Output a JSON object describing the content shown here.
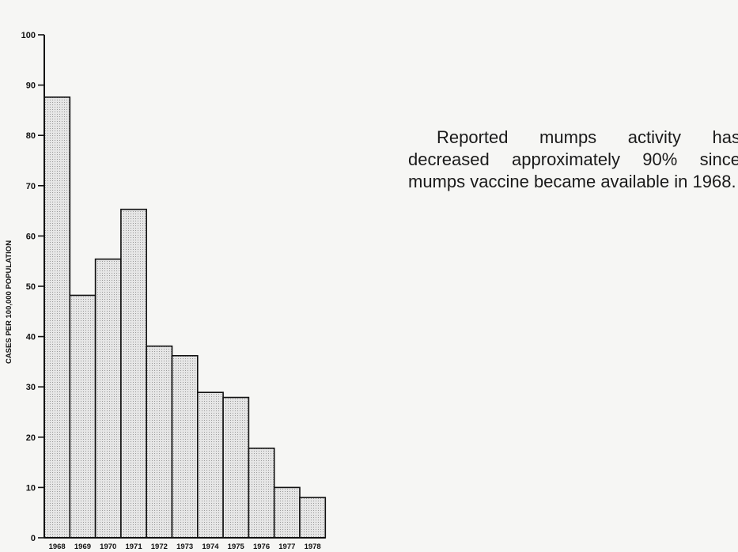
{
  "chart_data": {
    "type": "bar",
    "categories": [
      "1968",
      "1969",
      "1970",
      "1971",
      "1972",
      "1973",
      "1974",
      "1975",
      "1976",
      "1977",
      "1978"
    ],
    "values": [
      87.6,
      48.2,
      55.4,
      65.3,
      38.1,
      36.2,
      28.9,
      27.9,
      17.8,
      10.0,
      8.0
    ],
    "ylabel": "CASES PER 100,000 POPULATION",
    "ylim": [
      0,
      100
    ],
    "yticks": [
      0,
      10,
      20,
      30,
      40,
      50,
      60,
      70,
      80,
      90,
      100
    ],
    "grid": false,
    "bar_fill": "#e2e2e2",
    "bar_stroke": "#111111"
  },
  "annotation": {
    "text": "Reported mumps activity has decreased approximately 90% since mumps vaccine became available in 1968."
  }
}
